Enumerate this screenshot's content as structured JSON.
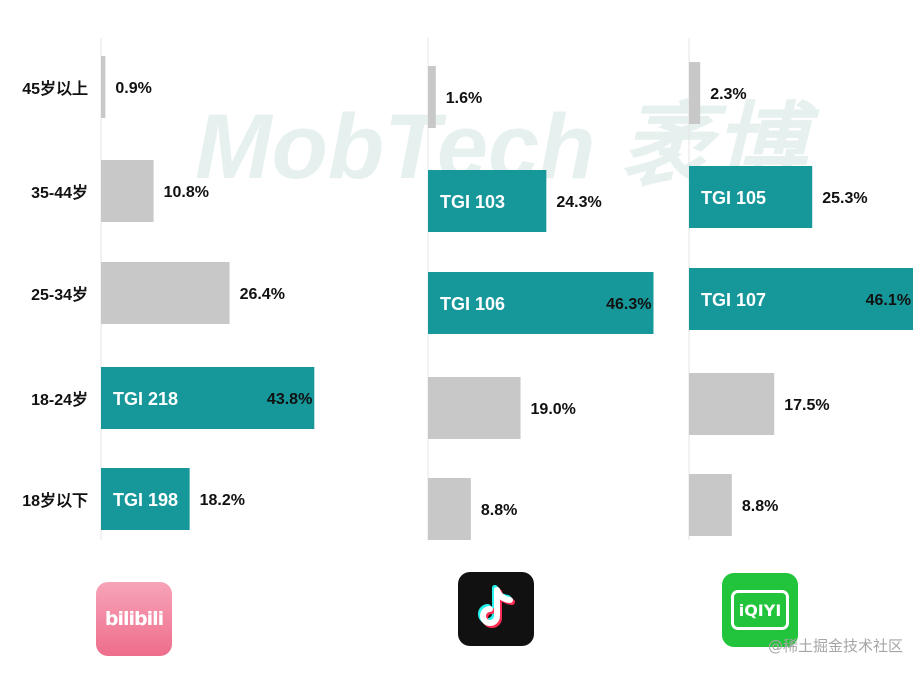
{
  "watermark": "MobTech 袤博",
  "credit": "@稀土掘金技术社区",
  "logos": {
    "bilibili": {
      "text": "bilibili",
      "icon": "bilibili-logo-icon"
    },
    "douyin": {
      "icon": "tiktok-note-icon"
    },
    "iqiyi": {
      "text": "iQIYI",
      "icon": "iqiyi-logo-icon"
    }
  },
  "colors": {
    "highlight": "#16989a",
    "neutral": "#c8c8c8",
    "axis": "#e5e5e5",
    "text": "#111111"
  },
  "chart_data": {
    "type": "bar",
    "orientation": "horizontal",
    "categories": [
      "45岁以上",
      "35-44岁",
      "25-34岁",
      "18-24岁",
      "18岁以下"
    ],
    "xlim": [
      0,
      48
    ],
    "grid": false,
    "panels": [
      {
        "app": "bilibili",
        "values": [
          0.9,
          10.8,
          26.4,
          43.8,
          18.2
        ],
        "labels": [
          "0.9%",
          "10.8%",
          "26.4%",
          "43.8%",
          "18.2%"
        ],
        "tgi": [
          "",
          "",
          "",
          "TGI 218",
          "TGI 198"
        ]
      },
      {
        "app": "douyin",
        "values": [
          1.6,
          24.3,
          46.3,
          19.0,
          8.8
        ],
        "labels": [
          "1.6%",
          "24.3%",
          "46.3%",
          "19.0%",
          "8.8%"
        ],
        "tgi": [
          "",
          "TGI 103",
          "TGI 106",
          "",
          ""
        ]
      },
      {
        "app": "iqiyi",
        "values": [
          2.3,
          25.3,
          46.1,
          17.5,
          8.8
        ],
        "labels": [
          "2.3%",
          "25.3%",
          "46.1%",
          "17.5%",
          "8.8%"
        ],
        "tgi": [
          "",
          "TGI 105",
          "TGI 107",
          "",
          ""
        ]
      }
    ]
  }
}
